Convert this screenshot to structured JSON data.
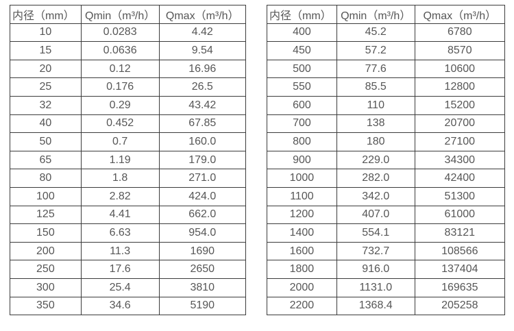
{
  "colors": {
    "background": "#ffffff",
    "border": "#3b3b3b",
    "text": "#565656"
  },
  "tables": [
    {
      "name": "flow-table-small-diameter",
      "headers": [
        "内径（mm）",
        "Qmin（m³/h）",
        "Qmax（m³/h）"
      ],
      "rows": [
        [
          "10",
          "0.0283",
          "4.42"
        ],
        [
          "15",
          "0.0636",
          "9.54"
        ],
        [
          "20",
          "0.12",
          "16.96"
        ],
        [
          "25",
          "0.176",
          "26.5"
        ],
        [
          "32",
          "0.29",
          "43.42"
        ],
        [
          "40",
          "0.452",
          "67.85"
        ],
        [
          "50",
          "0.7",
          "160.0"
        ],
        [
          "65",
          "1.19",
          "179.0"
        ],
        [
          "80",
          "1.8",
          "271.0"
        ],
        [
          "100",
          "2.82",
          "424.0"
        ],
        [
          "125",
          "4.41",
          "662.0"
        ],
        [
          "150",
          "6.63",
          "954.0"
        ],
        [
          "200",
          "11.3",
          "1690"
        ],
        [
          "250",
          "17.6",
          "2650"
        ],
        [
          "300",
          "25.4",
          "3810"
        ],
        [
          "350",
          "34.6",
          "5190"
        ]
      ]
    },
    {
      "name": "flow-table-large-diameter",
      "headers": [
        "内径（mm）",
        "Qmin（m³/h）",
        "Qmax（m³/h）"
      ],
      "rows": [
        [
          "400",
          "45.2",
          "6780"
        ],
        [
          "450",
          "57.2",
          "8570"
        ],
        [
          "500",
          "77.6",
          "10600"
        ],
        [
          "550",
          "85.5",
          "12800"
        ],
        [
          "600",
          "110",
          "15200"
        ],
        [
          "700",
          "138",
          "20700"
        ],
        [
          "800",
          "180",
          "27100"
        ],
        [
          "900",
          "229.0",
          "34300"
        ],
        [
          "1000",
          "282.0",
          "42400"
        ],
        [
          "1100",
          "342.0",
          "51300"
        ],
        [
          "1200",
          "407.0",
          "61000"
        ],
        [
          "1400",
          "554.1",
          "83121"
        ],
        [
          "1600",
          "732.7",
          "108566"
        ],
        [
          "1800",
          "916.0",
          "137404"
        ],
        [
          "2000",
          "1131.0",
          "169635"
        ],
        [
          "2200",
          "1368.4",
          "205258"
        ]
      ]
    }
  ]
}
